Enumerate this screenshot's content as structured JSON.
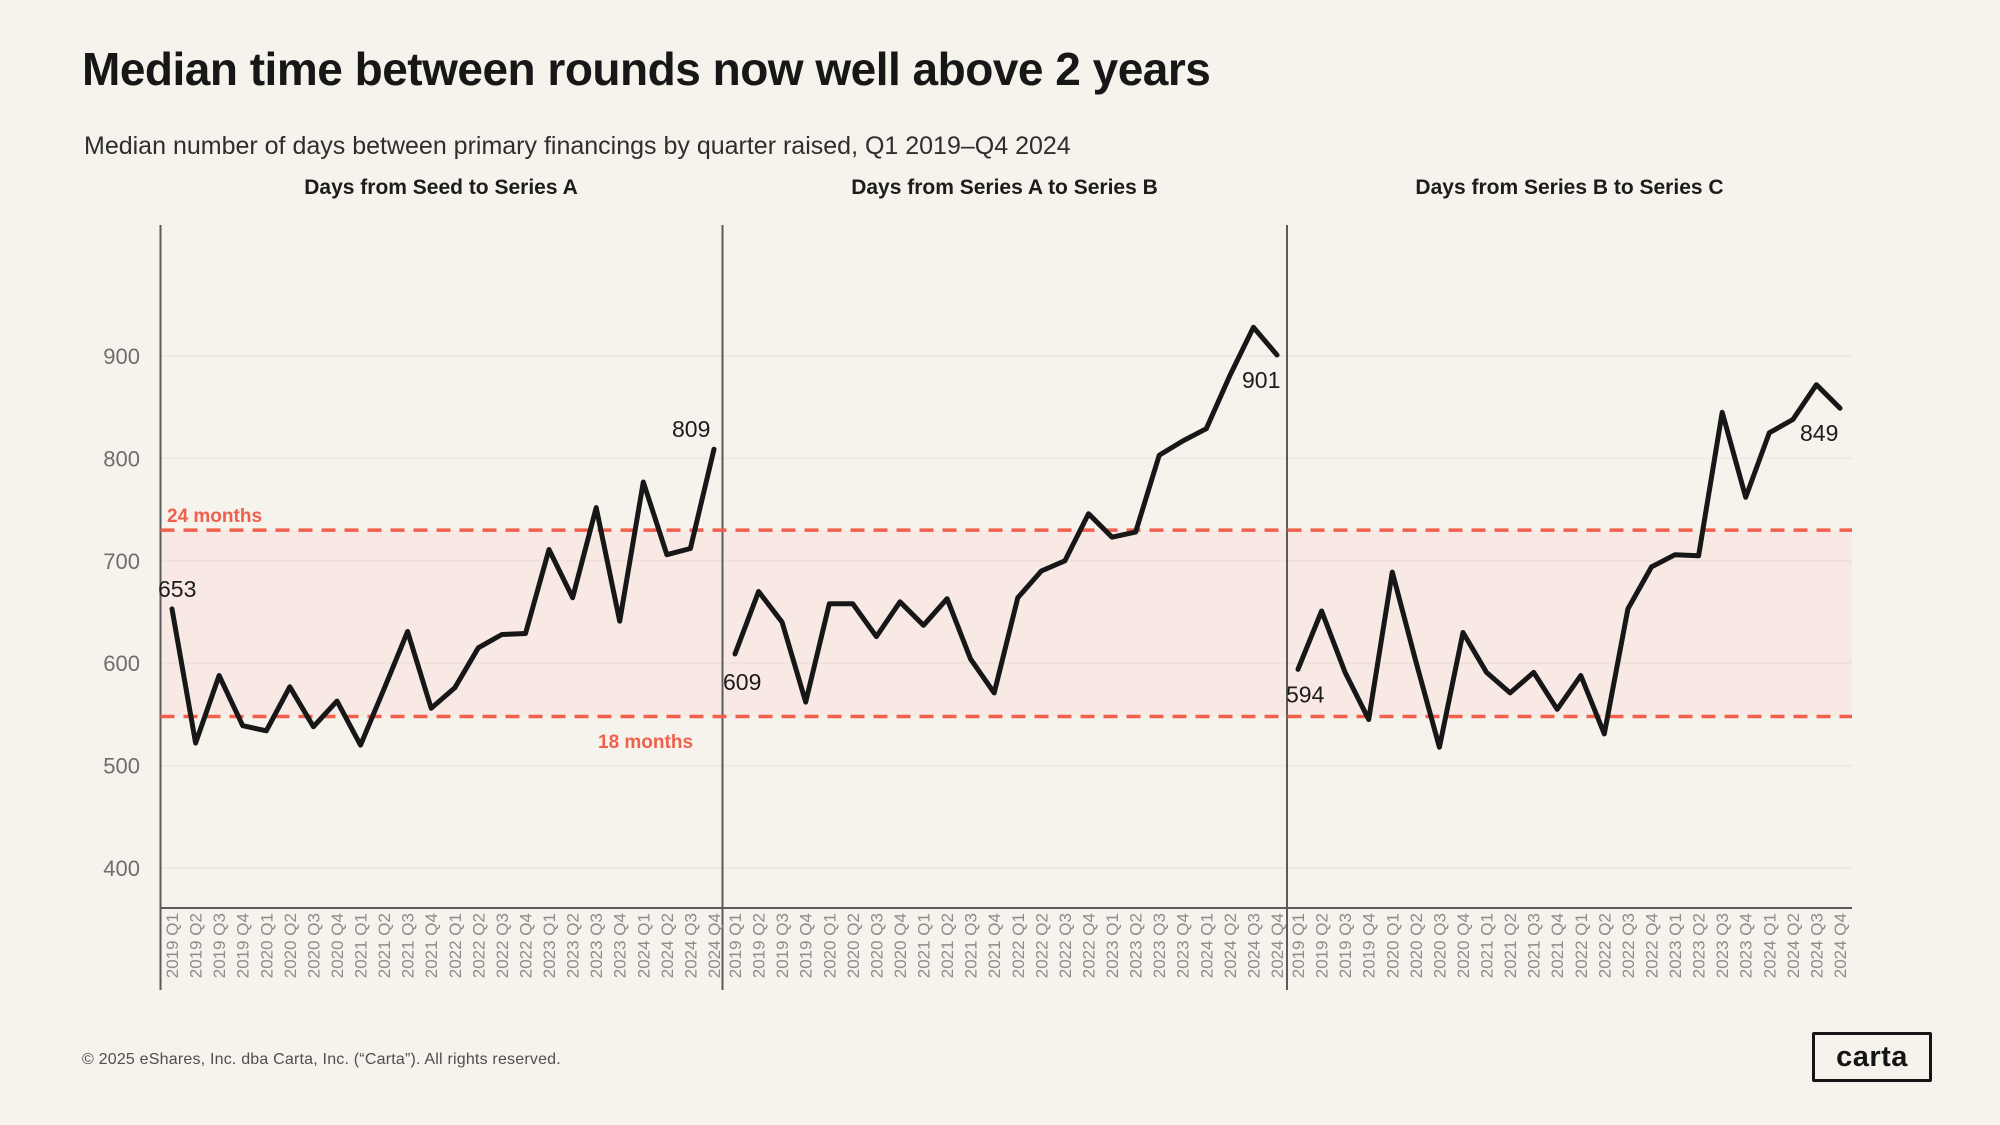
{
  "header": {
    "title": "Median time between rounds now well above 2 years",
    "subtitle": "Median number of days between primary financings by quarter raised, Q1 2019–Q4 2024"
  },
  "footer": {
    "copyright": "© 2025 eShares, Inc. dba Carta, Inc. (“Carta”). All rights reserved.",
    "logo_text": "carta"
  },
  "chart_data": {
    "type": "line",
    "categories": [
      "2019 Q1",
      "2019 Q2",
      "2019 Q3",
      "2019 Q4",
      "2020 Q1",
      "2020 Q2",
      "2020 Q3",
      "2020 Q4",
      "2021 Q1",
      "2021 Q2",
      "2021 Q3",
      "2021 Q4",
      "2022 Q1",
      "2022 Q2",
      "2022 Q3",
      "2022 Q4",
      "2023 Q1",
      "2023 Q2",
      "2023 Q3",
      "2023 Q4",
      "2024 Q1",
      "2024 Q2",
      "2024 Q3",
      "2024 Q4"
    ],
    "panels": [
      {
        "title": "Days from Seed to Series A",
        "first_label": "653",
        "last_label": "809",
        "values": [
          653,
          522,
          588,
          539,
          534,
          577,
          538,
          563,
          520,
          575,
          631,
          556,
          576,
          615,
          628,
          629,
          711,
          664,
          752,
          641,
          777,
          706,
          712,
          809
        ]
      },
      {
        "title": "Days from Series A to Series B",
        "first_label": "609",
        "last_label": "901",
        "values": [
          609,
          670,
          640,
          562,
          658,
          658,
          626,
          660,
          637,
          663,
          604,
          571,
          664,
          690,
          700,
          746,
          723,
          728,
          803,
          817,
          829,
          881,
          928,
          901
        ]
      },
      {
        "title": "Days from Series B to Series C",
        "first_label": "594",
        "last_label": "849",
        "values": [
          594,
          651,
          591,
          545,
          689,
          602,
          518,
          630,
          591,
          571,
          591,
          555,
          588,
          531,
          653,
          694,
          706,
          705,
          845,
          762,
          825,
          838,
          872,
          849
        ]
      }
    ],
    "yticks": [
      400,
      500,
      600,
      700,
      800,
      900
    ],
    "ylim": [
      361,
      1028
    ],
    "grid": "faint horizontal lines at y ticks",
    "legend": "none",
    "reference_lines": [
      {
        "label": "24 months",
        "value": 730
      },
      {
        "label": "18 months",
        "value": 548
      }
    ],
    "colors": {
      "background": "#f6f2ec",
      "band": "#f8e9e4",
      "accent": "#f0604d",
      "line": "#171717",
      "axis": "#5b5b5b"
    }
  }
}
